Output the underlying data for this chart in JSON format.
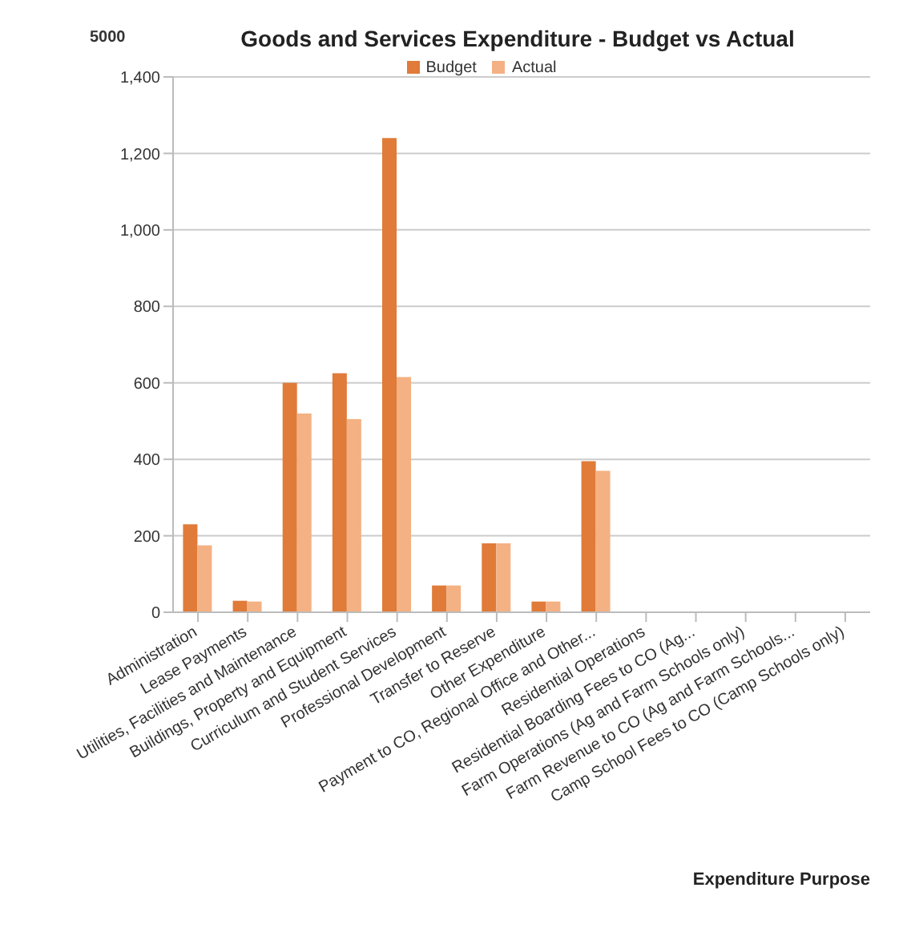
{
  "chart_data": {
    "type": "bar",
    "title": "Goods and Services Expenditure - Budget vs Actual",
    "xlabel": "Expenditure Purpose",
    "annotations": [
      "5000"
    ],
    "categories": [
      "Administration",
      "Lease Payments",
      "Utilities, Facilities and Maintenance",
      "Buildings, Property and Equipment",
      "Curriculum and Student Services",
      "Professional Development",
      "Transfer to Reserve",
      "Other Expenditure",
      "Payment to CO, Regional Office and Other...",
      "Residential Operations",
      "Residential Boarding Fees to CO (Ag...",
      "Farm Operations (Ag and Farm Schools only)",
      "Farm Revenue to CO (Ag and Farm Schools...",
      "Camp School Fees to CO (Camp Schools only)"
    ],
    "series": [
      {
        "name": "Budget",
        "color": "#e07b39",
        "values": [
          230,
          30,
          600,
          625,
          1240,
          70,
          180,
          28,
          395,
          null,
          0,
          0,
          0,
          0
        ]
      },
      {
        "name": "Actual",
        "color": "#f4b183",
        "values": [
          175,
          28,
          520,
          505,
          615,
          70,
          180,
          28,
          370,
          null,
          0,
          0,
          0,
          0
        ]
      }
    ],
    "ylim": [
      0,
      1400
    ],
    "yticks": [
      0,
      {
        "value": 200,
        "label": "200"
      },
      {
        "value": 400,
        "label": "400"
      },
      {
        "value": 600,
        "label": "600"
      },
      {
        "value": 800,
        "label": "800"
      },
      {
        "value": 1000,
        "label": "1,000"
      },
      {
        "value": 1200,
        "label": "1,200"
      },
      {
        "value": 1400,
        "label": "1,400"
      }
    ],
    "grid": "y",
    "legend": "top"
  }
}
